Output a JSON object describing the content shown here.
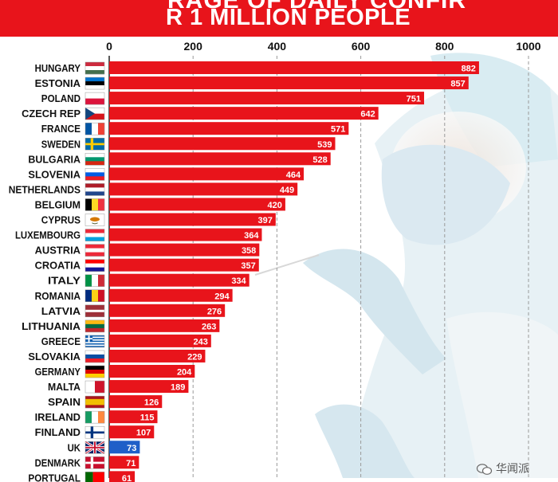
{
  "header": {
    "line1": "RAGE OF DAILY CONFIR",
    "line2": "R 1 MILLION PEOPLE"
  },
  "watermark": {
    "text": "华闻派"
  },
  "chart_data": {
    "type": "bar",
    "orientation": "horizontal",
    "title": "",
    "xlabel": "",
    "ylabel": "",
    "xlim": [
      0,
      1000
    ],
    "xticks": [
      0,
      200,
      400,
      600,
      800,
      1000
    ],
    "grid": "vertical dashed",
    "value_labels": true,
    "colors": {
      "bar": "#e8141b",
      "highlight": "#1f5fc8",
      "label": "#ffffff"
    },
    "categories": [
      "HUNGARY",
      "ESTONIA",
      "POLAND",
      "CZECH REP",
      "FRANCE",
      "SWEDEN",
      "BULGARIA",
      "SLOVENIA",
      "NETHERLANDS",
      "BELGIUM",
      "CYPRUS",
      "LUXEMBOURG",
      "AUSTRIA",
      "CROATIA",
      "ITALY",
      "ROMANIA",
      "LATVIA",
      "LITHUANIA",
      "GREECE",
      "SLOVAKIA",
      "GERMANY",
      "MALTA",
      "SPAIN",
      "IRELAND",
      "FINLAND",
      "UK",
      "DENMARK",
      "PORTUGAL"
    ],
    "values": [
      882,
      857,
      751,
      642,
      571,
      539,
      528,
      464,
      449,
      420,
      397,
      364,
      358,
      357,
      334,
      294,
      276,
      263,
      243,
      229,
      204,
      189,
      126,
      115,
      107,
      73,
      71,
      61
    ],
    "highlighted": [
      "UK"
    ],
    "flags": [
      {
        "type": "h",
        "c": [
          "#cd2a3e",
          "#ffffff",
          "#436f4d"
        ]
      },
      {
        "type": "h",
        "c": [
          "#0072ce",
          "#000000",
          "#ffffff"
        ]
      },
      {
        "type": "h",
        "c": [
          "#ffffff",
          "#dc143c"
        ]
      },
      {
        "type": "czech"
      },
      {
        "type": "v",
        "c": [
          "#0055a4",
          "#ffffff",
          "#ef4135"
        ]
      },
      {
        "type": "nordic",
        "bg": "#006aa7",
        "cross": "#fecc00"
      },
      {
        "type": "h",
        "c": [
          "#ffffff",
          "#00966e",
          "#d62612"
        ]
      },
      {
        "type": "h",
        "c": [
          "#ffffff",
          "#005ce5",
          "#ed1c24"
        ]
      },
      {
        "type": "h",
        "c": [
          "#ae1c28",
          "#ffffff",
          "#21468b"
        ]
      },
      {
        "type": "v",
        "c": [
          "#000000",
          "#fdda24",
          "#ef3340"
        ]
      },
      {
        "type": "cyprus"
      },
      {
        "type": "h",
        "c": [
          "#ed2939",
          "#ffffff",
          "#00a1de"
        ]
      },
      {
        "type": "h",
        "c": [
          "#ed2939",
          "#ffffff",
          "#ed2939"
        ]
      },
      {
        "type": "h",
        "c": [
          "#ff0000",
          "#ffffff",
          "#171796"
        ]
      },
      {
        "type": "v",
        "c": [
          "#009246",
          "#ffffff",
          "#ce2b37"
        ]
      },
      {
        "type": "v",
        "c": [
          "#002b7f",
          "#fcd116",
          "#ce1126"
        ]
      },
      {
        "type": "h",
        "c": [
          "#9e3039",
          "#9e3039",
          "#ffffff",
          "#9e3039",
          "#9e3039"
        ]
      },
      {
        "type": "h",
        "c": [
          "#fdb913",
          "#006a44",
          "#c1272d"
        ]
      },
      {
        "type": "greece"
      },
      {
        "type": "h",
        "c": [
          "#ffffff",
          "#0b4ea2",
          "#ee1c25"
        ]
      },
      {
        "type": "h",
        "c": [
          "#000000",
          "#dd0000",
          "#ffce00"
        ]
      },
      {
        "type": "v",
        "c": [
          "#ffffff",
          "#cf142b"
        ]
      },
      {
        "type": "spain"
      },
      {
        "type": "v",
        "c": [
          "#169b62",
          "#ffffff",
          "#ff883e"
        ]
      },
      {
        "type": "nordic",
        "bg": "#ffffff",
        "cross": "#003580"
      },
      {
        "type": "uk"
      },
      {
        "type": "nordic",
        "bg": "#c8102e",
        "cross": "#ffffff"
      },
      {
        "type": "v2",
        "c": [
          "#006600",
          "#ff0000"
        ]
      }
    ]
  }
}
